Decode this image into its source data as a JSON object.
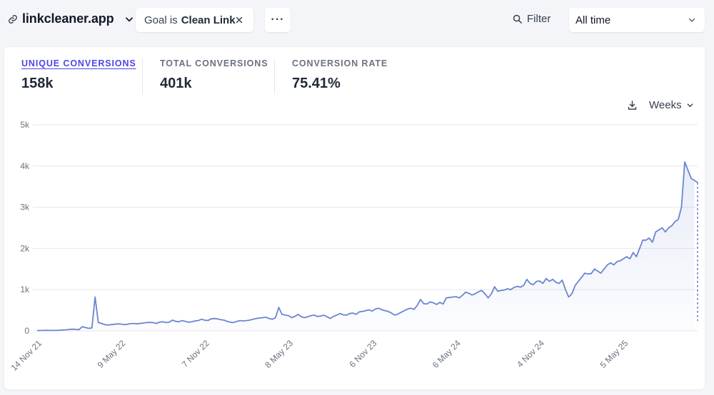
{
  "header": {
    "site_name": "linkcleaner.app",
    "site_icon": "link-icon",
    "goal_filter": {
      "prefix": "Goal is",
      "value": "Clean Link",
      "remove_icon": "close-icon"
    },
    "more_label": "···",
    "filter_label": "Filter",
    "period_label": "All time"
  },
  "metrics": [
    {
      "label": "Unique conversions",
      "value": "158k",
      "active": true
    },
    {
      "label": "Total conversions",
      "value": "401k",
      "active": false
    },
    {
      "label": "Conversion rate",
      "value": "75.41%",
      "active": false
    }
  ],
  "chart_controls": {
    "download_icon": "download-icon",
    "interval_label": "Weeks"
  },
  "colors": {
    "accent": "#4f46e5",
    "line": "#6b85d1"
  },
  "chart_data": {
    "type": "area",
    "title": "",
    "xlabel": "",
    "ylabel": "",
    "x_tick_labels": [
      "14 Nov 21",
      "9 May 22",
      "7 Nov 22",
      "8 May 23",
      "6 Nov 23",
      "6 May 24",
      "4 Nov 24",
      "5 May 25"
    ],
    "y_tick_labels": [
      "0",
      "1k",
      "2k",
      "3k",
      "4k",
      "5k"
    ],
    "ylim": [
      0,
      5000
    ],
    "interval": "Weeks",
    "grid": true,
    "last_point_incomplete": true,
    "series": [
      {
        "values": [
          5,
          8,
          10,
          12,
          10,
          10,
          12,
          15,
          20,
          25,
          35,
          40,
          35,
          30,
          100,
          80,
          60,
          70,
          820,
          200,
          180,
          150,
          140,
          150,
          160,
          170,
          165,
          150,
          160,
          175,
          180,
          170,
          180,
          190,
          200,
          205,
          200,
          180,
          210,
          220,
          200,
          210,
          260,
          230,
          220,
          250,
          230,
          210,
          220,
          240,
          250,
          280,
          260,
          250,
          290,
          300,
          290,
          270,
          260,
          230,
          210,
          200,
          230,
          250,
          240,
          250,
          260,
          280,
          300,
          310,
          320,
          330,
          300,
          280,
          320,
          570,
          400,
          380,
          370,
          320,
          350,
          400,
          340,
          320,
          340,
          370,
          380,
          350,
          360,
          380,
          340,
          300,
          350,
          380,
          420,
          390,
          380,
          420,
          430,
          400,
          460,
          470,
          490,
          510,
          480,
          530,
          550,
          510,
          490,
          470,
          430,
          380,
          410,
          450,
          490,
          530,
          550,
          520,
          620,
          760,
          660,
          650,
          700,
          680,
          640,
          690,
          650,
          800,
          810,
          820,
          830,
          800,
          860,
          940,
          910,
          870,
          900,
          950,
          980,
          900,
          800,
          900,
          1070,
          960,
          980,
          990,
          1020,
          1000,
          1050,
          1080,
          1060,
          1100,
          1250,
          1150,
          1120,
          1200,
          1210,
          1150,
          1270,
          1200,
          1250,
          1180,
          1150,
          1230,
          1000,
          820,
          900,
          1100,
          1200,
          1300,
          1400,
          1380,
          1390,
          1500,
          1450,
          1400,
          1500,
          1600,
          1650,
          1600,
          1680,
          1700,
          1750,
          1800,
          1750,
          1900,
          1800,
          2000,
          2200,
          2200,
          2250,
          2150,
          2400,
          2450,
          2500,
          2400,
          2500,
          2550,
          2650,
          2700,
          3000,
          4100,
          3900,
          3700,
          3650,
          3600
        ]
      }
    ]
  }
}
